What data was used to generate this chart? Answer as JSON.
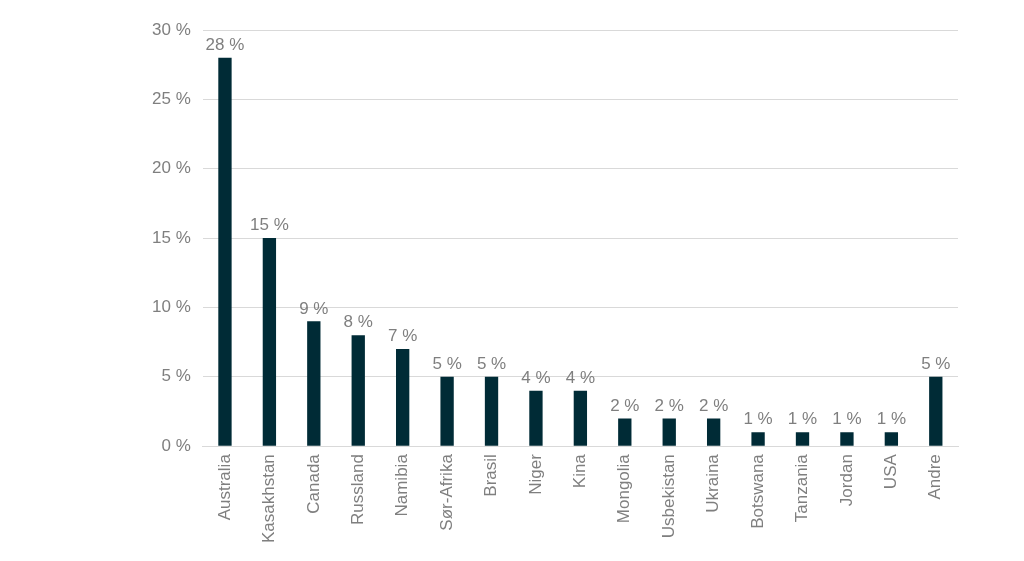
{
  "chart_data": {
    "type": "bar",
    "categories": [
      "Australia",
      "Kasakhstan",
      "Canada",
      "Russland",
      "Namibia",
      "Sør-Afrika",
      "Brasil",
      "Niger",
      "Kina",
      "Mongolia",
      "Usbekistan",
      "Ukraina",
      "Botswana",
      "Tanzania",
      "Jordan",
      "USA",
      "Andre"
    ],
    "values": [
      28,
      15,
      9,
      8,
      7,
      5,
      5,
      4,
      4,
      2,
      2,
      2,
      1,
      1,
      1,
      1,
      5
    ],
    "value_labels": [
      "28 %",
      "15 %",
      "9 %",
      "8 %",
      "7 %",
      "5 %",
      "5 %",
      "4 %",
      "4 %",
      "2 %",
      "2 %",
      "2 %",
      "1 %",
      "1 %",
      "1 %",
      "1 %",
      "5 %"
    ],
    "color": "#002b36",
    "ylim": [
      0,
      30
    ],
    "yticks": [
      {
        "value": 0,
        "label": "0 %"
      },
      {
        "value": 5,
        "label": "5 %"
      },
      {
        "value": 10,
        "label": "10 %"
      },
      {
        "value": 15,
        "label": "15 %"
      },
      {
        "value": 20,
        "label": "20 %"
      },
      {
        "value": 25,
        "label": "25 %"
      },
      {
        "value": 30,
        "label": "30 %"
      }
    ],
    "grid": "y"
  }
}
